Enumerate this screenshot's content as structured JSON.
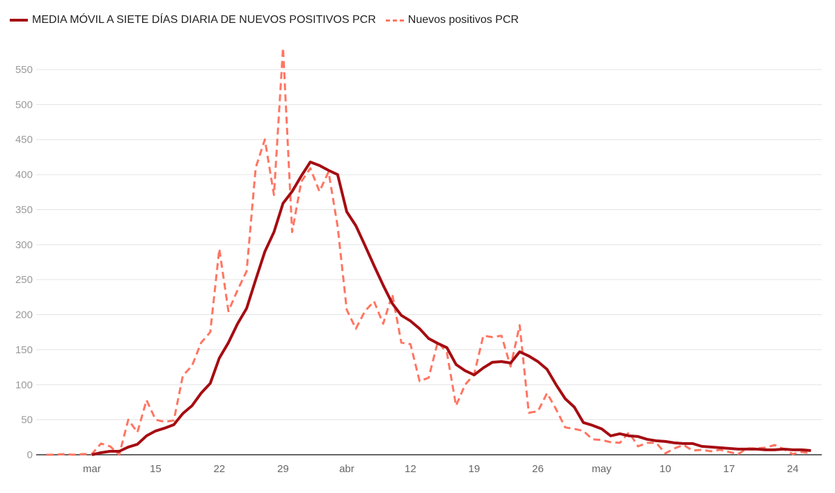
{
  "chart_data": {
    "type": "line",
    "title": "",
    "xlabel": "",
    "ylabel": "",
    "ylim": [
      0,
      580
    ],
    "yticks": [
      "0",
      "50",
      "100",
      "150",
      "200",
      "250",
      "300",
      "350",
      "400",
      "450",
      "500",
      "550"
    ],
    "xticks": [
      {
        "date": "03-08",
        "label": "mar"
      },
      {
        "date": "03-15",
        "label": "15"
      },
      {
        "date": "03-22",
        "label": "22"
      },
      {
        "date": "03-29",
        "label": "29"
      },
      {
        "date": "04-05",
        "label": "abr"
      },
      {
        "date": "04-12",
        "label": "12"
      },
      {
        "date": "04-19",
        "label": "19"
      },
      {
        "date": "04-26",
        "label": "26"
      },
      {
        "date": "05-03",
        "label": "may"
      },
      {
        "date": "05-10",
        "label": "10"
      },
      {
        "date": "05-17",
        "label": "17"
      },
      {
        "date": "05-24",
        "label": "24"
      }
    ],
    "grid": true,
    "legend_position": "top-left",
    "x": [
      "03-03",
      "03-04",
      "03-05",
      "03-06",
      "03-07",
      "03-08",
      "03-09",
      "03-10",
      "03-11",
      "03-12",
      "03-13",
      "03-14",
      "03-15",
      "03-16",
      "03-17",
      "03-18",
      "03-19",
      "03-20",
      "03-21",
      "03-22",
      "03-23",
      "03-24",
      "03-25",
      "03-26",
      "03-27",
      "03-28",
      "03-29",
      "03-30",
      "03-31",
      "04-01",
      "04-02",
      "04-03",
      "04-04",
      "04-05",
      "04-06",
      "04-07",
      "04-08",
      "04-09",
      "04-10",
      "04-11",
      "04-12",
      "04-13",
      "04-14",
      "04-15",
      "04-16",
      "04-17",
      "04-18",
      "04-19",
      "04-20",
      "04-21",
      "04-22",
      "04-23",
      "04-24",
      "04-25",
      "04-26",
      "04-27",
      "04-28",
      "04-29",
      "04-30",
      "05-01",
      "05-02",
      "05-03",
      "05-04",
      "05-05",
      "05-06",
      "05-07",
      "05-08",
      "05-09",
      "05-10",
      "05-11",
      "05-12",
      "05-13",
      "05-14",
      "05-15",
      "05-16",
      "05-17",
      "05-18",
      "05-19",
      "05-20",
      "05-21",
      "05-22",
      "05-23",
      "05-24",
      "05-25",
      "05-26"
    ],
    "series": [
      {
        "name": "MEDIA MÓVIL A SIETE DÍAS DIARIA DE NUEVOS POSITIVOS PCR",
        "color": "#a50d12",
        "style": "solid",
        "values": [
          null,
          null,
          null,
          null,
          null,
          0,
          3,
          5,
          5,
          11,
          15,
          27,
          34,
          38,
          43,
          59,
          70,
          88,
          102,
          138,
          160,
          187,
          209,
          250,
          290,
          318,
          359,
          376,
          398,
          418,
          413,
          406,
          400,
          347,
          327,
          299,
          270,
          242,
          216,
          199,
          191,
          180,
          166,
          159,
          153,
          129,
          120,
          114,
          124,
          132,
          133,
          131,
          147,
          141,
          133,
          122,
          100,
          80,
          68,
          46,
          42,
          37,
          27,
          30,
          27,
          26,
          22,
          20,
          19,
          17,
          16,
          16,
          12,
          11,
          10,
          9,
          8,
          8,
          8,
          7,
          7,
          8,
          7,
          7,
          6
        ]
      },
      {
        "name": "Nuevos positivos PCR",
        "color": "#ff7562",
        "style": "dashed",
        "values": [
          0,
          0,
          1,
          0,
          1,
          1,
          16,
          12,
          0,
          50,
          32,
          78,
          50,
          47,
          49,
          113,
          127,
          160,
          175,
          294,
          205,
          235,
          262,
          410,
          450,
          371,
          581,
          318,
          390,
          409,
          376,
          404,
          326,
          207,
          180,
          205,
          219,
          187,
          229,
          160,
          158,
          105,
          110,
          161,
          146,
          70,
          100,
          115,
          170,
          168,
          170,
          126,
          185,
          60,
          62,
          88,
          65,
          39,
          37,
          34,
          22,
          21,
          18,
          17,
          32,
          12,
          17,
          17,
          2,
          9,
          14,
          6,
          7,
          5,
          7,
          4,
          1,
          9,
          9,
          10,
          14,
          8,
          1,
          4,
          2
        ]
      }
    ]
  }
}
